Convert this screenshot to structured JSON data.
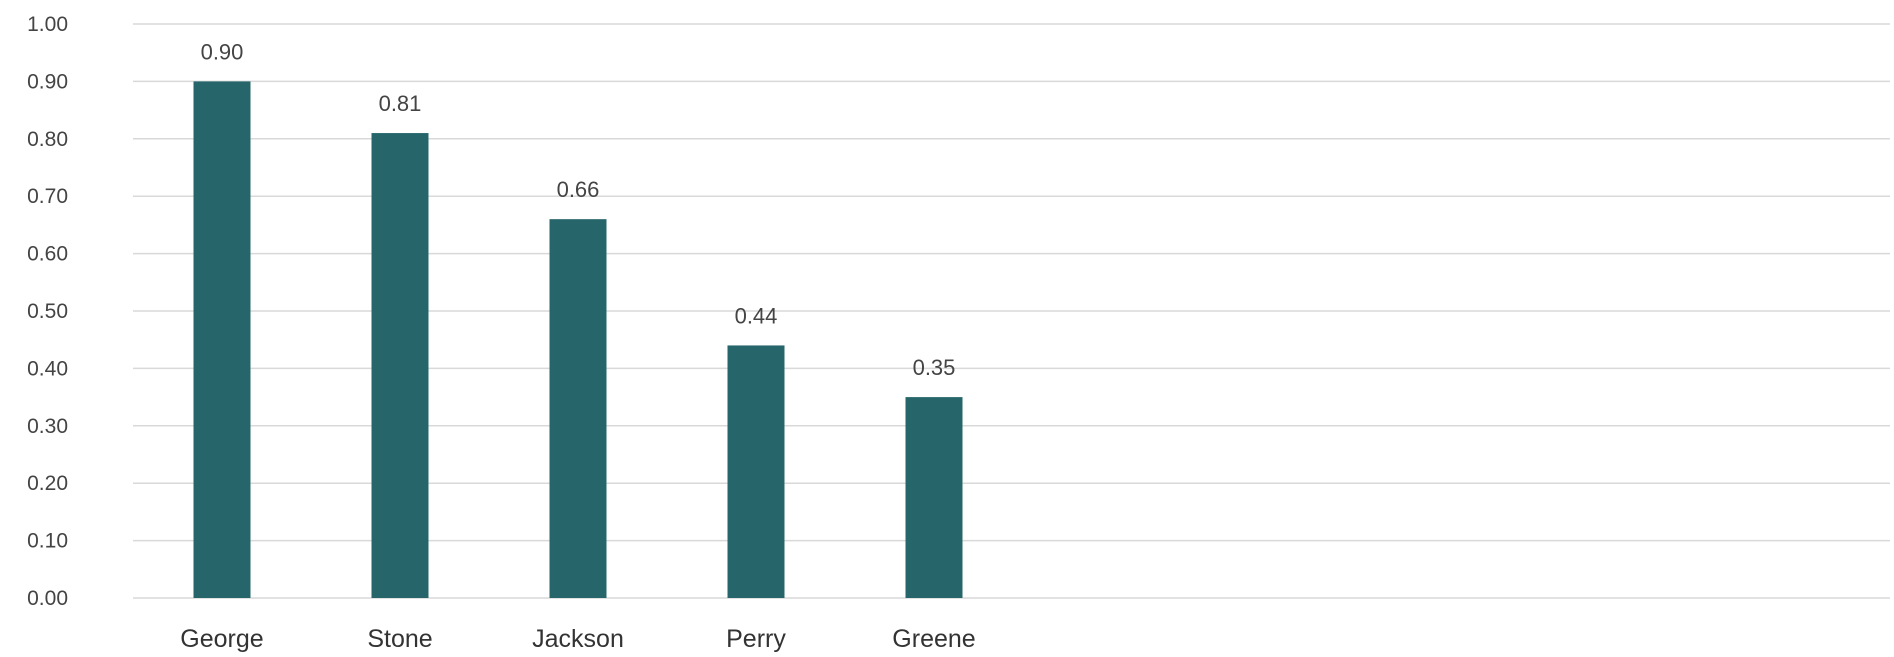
{
  "chart_data": {
    "type": "bar",
    "categories": [
      "George",
      "Stone",
      "Jackson",
      "Perry",
      "Greene"
    ],
    "values": [
      0.9,
      0.81,
      0.66,
      0.44,
      0.35
    ],
    "value_labels": [
      "0.90",
      "0.81",
      "0.66",
      "0.44",
      "0.35"
    ],
    "title": "",
    "xlabel": "",
    "ylabel": "",
    "ylim": [
      0,
      1.0
    ],
    "yticks": [
      "0.00",
      "0.10",
      "0.20",
      "0.30",
      "0.40",
      "0.50",
      "0.60",
      "0.70",
      "0.80",
      "0.90",
      "1.00"
    ],
    "grid": true,
    "legend": "none",
    "bar_color": "#26666a",
    "grid_color": "#d9d9d9"
  }
}
